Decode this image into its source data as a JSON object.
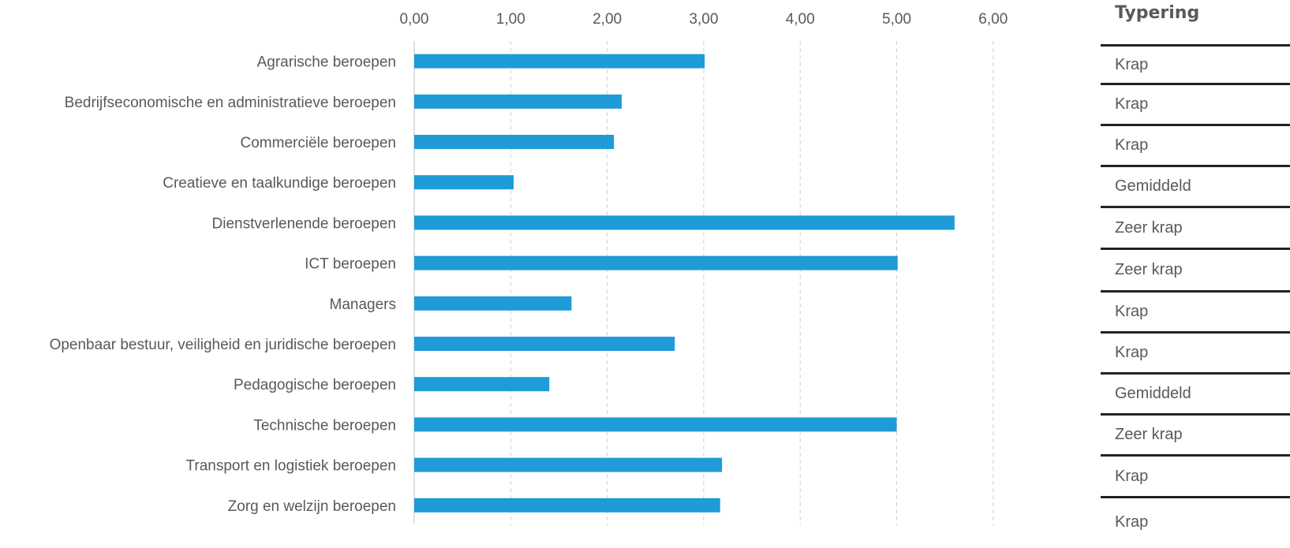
{
  "chart_data": {
    "type": "bar",
    "orientation": "horizontal",
    "title": "",
    "xlabel": "",
    "ylabel": "",
    "xlim": [
      0,
      6
    ],
    "xticks": [
      "0,00",
      "1,00",
      "2,00",
      "3,00",
      "4,00",
      "5,00",
      "6,00"
    ],
    "grid": "vertical-dashed",
    "bar_color": "#1f9bd7",
    "categories": [
      "Agrarische beroepen",
      "Bedrijfseconomische en administratieve beroepen",
      "Commerciële beroepen",
      "Creatieve en taalkundige beroepen",
      "Dienstverlenende beroepen",
      "ICT beroepen",
      "Managers",
      "Openbaar bestuur, veiligheid en juridische beroepen",
      "Pedagogische beroepen",
      "Technische beroepen",
      "Transport en logistiek beroepen",
      "Zorg en welzijn beroepen"
    ],
    "values": [
      3.01,
      2.15,
      2.07,
      1.03,
      5.6,
      5.01,
      1.63,
      2.7,
      1.4,
      5.0,
      3.19,
      3.17
    ]
  },
  "typering": {
    "header": "Typering",
    "items": [
      "Krap",
      "Krap",
      "Krap",
      "Gemiddeld",
      "Zeer krap",
      "Zeer krap",
      "Krap",
      "Krap",
      "Gemiddeld",
      "Zeer krap",
      "Krap",
      "Krap"
    ]
  }
}
